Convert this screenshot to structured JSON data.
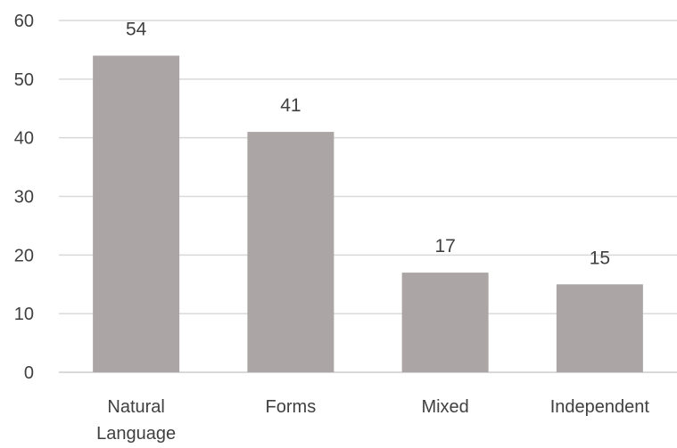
{
  "chart_data": {
    "type": "bar",
    "title": "",
    "xlabel": "",
    "ylabel": "",
    "categories": [
      [
        "Natural",
        "Language"
      ],
      [
        "Forms"
      ],
      [
        "Mixed"
      ],
      [
        "Independent"
      ]
    ],
    "values": [
      54,
      41,
      17,
      15
    ],
    "ylim": [
      0,
      60
    ],
    "yticks": [
      0,
      10,
      20,
      30,
      40,
      50,
      60
    ],
    "grid": true,
    "legend": "none",
    "data_labels": true,
    "colors": {
      "bar": "#aba6a5",
      "grid": "#d9d9d9",
      "text": "#404040"
    }
  }
}
